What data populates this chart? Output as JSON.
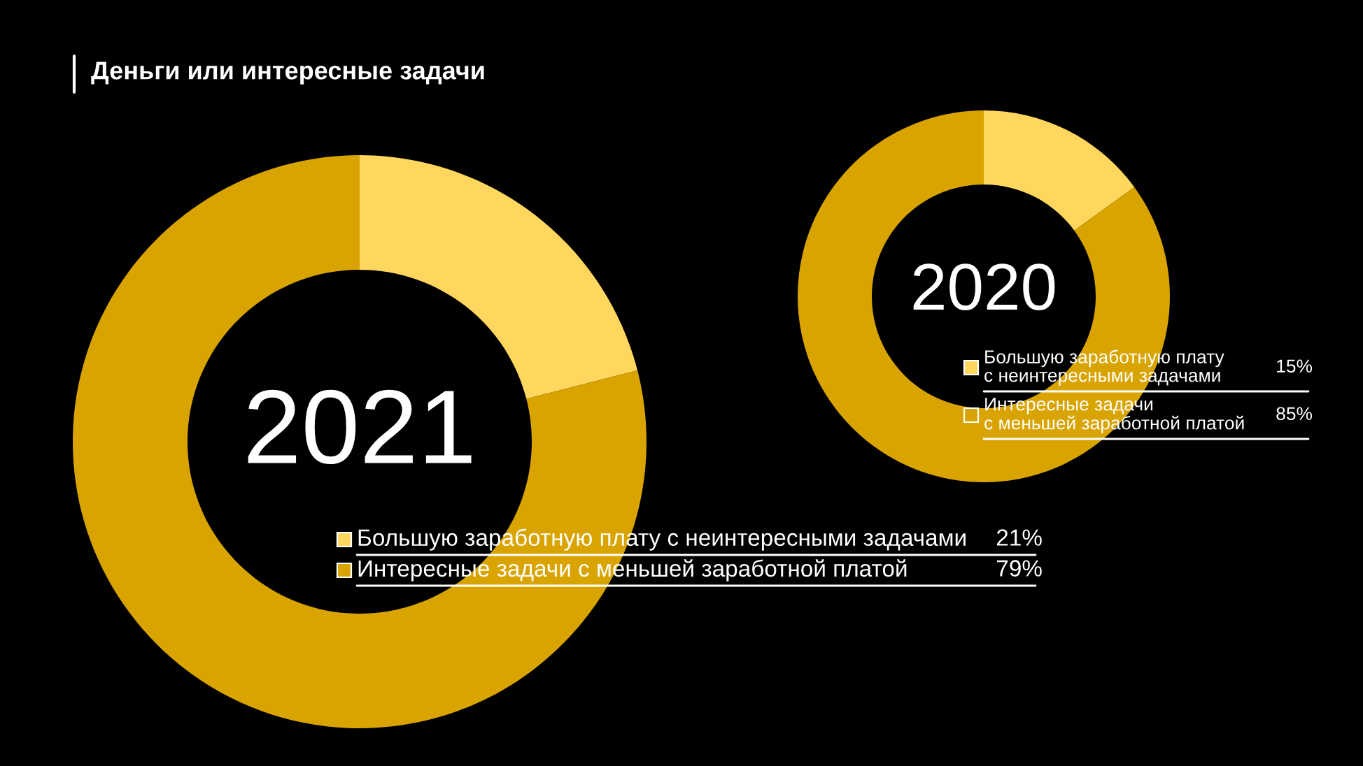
{
  "chart_data": [
    {
      "type": "donut",
      "title": "Деньги или интересные задачи",
      "annotations": [
        "2021"
      ],
      "categories": [
        "Большую заработную плату с неинтересными задачами",
        "Интересные задачи с меньшей заработной платой"
      ],
      "values": [
        21,
        79
      ],
      "colors": [
        "#ffd75e",
        "#d9a400"
      ],
      "value_labels": [
        "21%",
        "79%"
      ],
      "legend": "bottom right"
    },
    {
      "type": "donut",
      "annotations": [
        "2020"
      ],
      "categories": [
        "Большую заработную плату\nс неинтересными задачами",
        "Интересные задачи\nс меньшей заработной платой"
      ],
      "values": [
        15,
        85
      ],
      "colors": [
        "#ffd75e",
        "#d9a400"
      ],
      "value_labels": [
        "15%",
        "85%"
      ],
      "legend": "bottom right"
    }
  ]
}
